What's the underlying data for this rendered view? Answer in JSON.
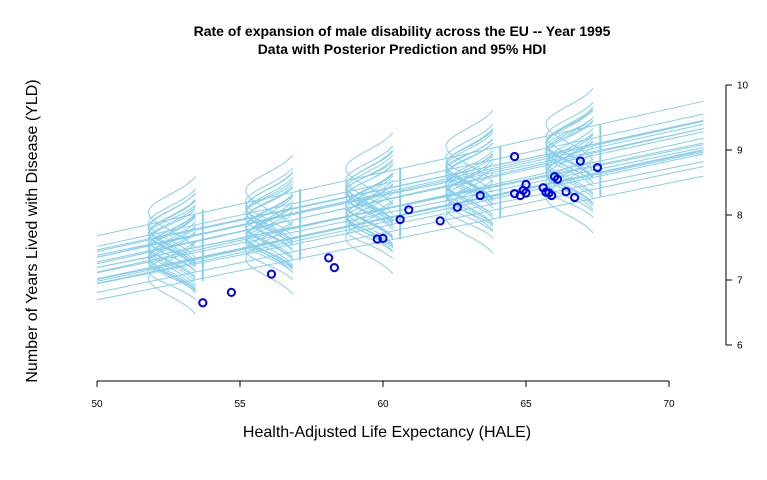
{
  "chart_data": {
    "type": "scatter",
    "title": "Rate of expansion of male disability across the EU -- Year 1995",
    "subtitle": "Data with Posterior Prediction and 95% HDI",
    "xlabel": "Health-Adjusted Life Expectancy (HALE)",
    "ylabel": "Number of Years Lived with Disease (YLD)",
    "xlim": [
      50,
      71.2
    ],
    "ylim": [
      5.95,
      10.1
    ],
    "x_ticks": [
      "50",
      "55",
      "60",
      "65",
      "70"
    ],
    "y_ticks": [
      "6",
      "7",
      "8",
      "9",
      "10"
    ],
    "y_axis_side": "right",
    "grid": false,
    "colors": {
      "points": "#0000ee",
      "posterior": "#87ceeb"
    },
    "series": [
      {
        "x": [
          53.7,
          54.7,
          56.1,
          58.1,
          58.3,
          59.8,
          60.0,
          60.6,
          60.9,
          62.0,
          62.6,
          63.4,
          64.6,
          64.6,
          64.8,
          64.9,
          65.0,
          65.0,
          65.6,
          65.7,
          65.8,
          65.9,
          66.0,
          66.1,
          66.4,
          66.7,
          66.9,
          67.5
        ],
        "y": [
          6.65,
          6.81,
          7.09,
          7.34,
          7.19,
          7.63,
          7.64,
          7.93,
          8.08,
          7.91,
          8.12,
          8.3,
          8.9,
          8.33,
          8.3,
          8.38,
          8.47,
          8.34,
          8.42,
          8.35,
          8.34,
          8.3,
          8.59,
          8.55,
          8.36,
          8.27,
          8.83,
          8.73
        ]
      }
    ],
    "posterior": {
      "intercept_range": [
        2.2,
        2.8
      ],
      "slope_range": [
        0.0888,
        0.0987
      ],
      "line_count": 20,
      "hdi_x": [
        53.7,
        57.1,
        60.6,
        64.1,
        67.6
      ]
    }
  }
}
